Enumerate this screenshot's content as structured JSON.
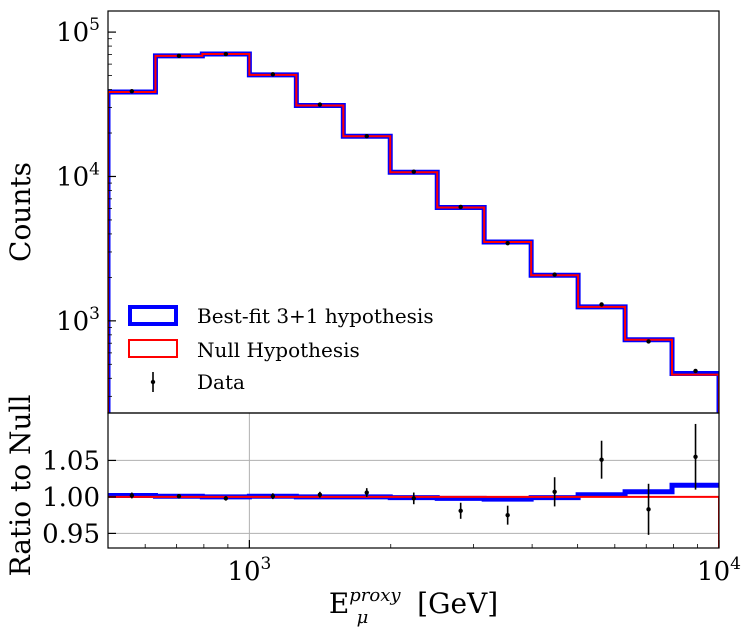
{
  "chart_data": [
    {
      "type": "step",
      "panel": "main",
      "ylabel": "Counts",
      "yscale": "log",
      "ylim": [
        230,
        140000
      ],
      "xscale": "log",
      "xlim": [
        500,
        10000
      ],
      "y_ticks": [
        {
          "value": 1000,
          "base": "10",
          "exp": "3"
        },
        {
          "value": 10000,
          "base": "10",
          "exp": "4"
        },
        {
          "value": 100000,
          "base": "10",
          "exp": "5"
        }
      ],
      "bin_edges": [
        500,
        631,
        794,
        1000,
        1259,
        1585,
        1995,
        2512,
        3162,
        3981,
        5012,
        6310,
        7943,
        10000
      ],
      "series": [
        {
          "name": "Best-fit 3+1 hypothesis",
          "color": "#0000ff",
          "values": [
            38500,
            68500,
            70500,
            50500,
            31000,
            19000,
            10700,
            6100,
            3520,
            2070,
            1250,
            740,
            432
          ]
        },
        {
          "name": "Null Hypothesis",
          "color": "#ff0000",
          "values": [
            38500,
            68500,
            70500,
            50500,
            31000,
            19000,
            10700,
            6100,
            3520,
            2070,
            1250,
            740,
            424
          ]
        }
      ],
      "data_points": {
        "name": "Data",
        "x": [
          562,
          708,
          891,
          1122,
          1413,
          1778,
          2239,
          2818,
          3548,
          4467,
          5623,
          7079,
          8913
        ],
        "y": [
          39000,
          68500,
          70500,
          51000,
          31500,
          19000,
          10800,
          6150,
          3450,
          2090,
          1300,
          720,
          450
        ]
      },
      "legend": {
        "position": "lower-left",
        "entries": [
          "Best-fit 3+1 hypothesis",
          "Null Hypothesis",
          "Data"
        ]
      }
    },
    {
      "type": "step",
      "panel": "ratio",
      "ylabel": "Ratio to Null",
      "xlabel_base": "E",
      "xlabel_sub": "μ",
      "xlabel_sup": "proxy",
      "xlabel_unit": "[GeV]",
      "ylim": [
        0.93,
        1.115
      ],
      "xlim": [
        500,
        10000
      ],
      "y_ticks": [
        {
          "value": 0.95,
          "label": "0.95"
        },
        {
          "value": 1.0,
          "label": "1.00"
        },
        {
          "value": 1.05,
          "label": "1.05"
        }
      ],
      "x_ticks": [
        {
          "value": 1000,
          "base": "10",
          "exp": "3"
        },
        {
          "value": 10000,
          "base": "10",
          "exp": "4"
        }
      ],
      "grid": true,
      "bin_edges": [
        500,
        631,
        794,
        1000,
        1259,
        1585,
        1995,
        2512,
        3162,
        3981,
        5012,
        6310,
        7943,
        10000
      ],
      "series": [
        {
          "name": "Best-fit 3+1 hypothesis",
          "color": "#0000ff",
          "values": [
            1.002,
            1.001,
            1.0,
            1.001,
            1.0,
            1.0,
            0.999,
            0.998,
            0.997,
            0.999,
            1.003,
            1.007,
            1.016
          ]
        },
        {
          "name": "Null Hypothesis",
          "color": "#ff0000",
          "values": [
            1.0,
            1.0,
            1.0,
            1.0,
            1.0,
            1.0,
            1.0,
            1.0,
            1.0,
            1.0,
            1.0,
            1.0,
            1.0
          ]
        }
      ],
      "data_points": {
        "name": "Data",
        "x": [
          562,
          708,
          891,
          1122,
          1413,
          1778,
          2239,
          2818,
          3548,
          4467,
          5623,
          7079,
          8913
        ],
        "y": [
          1.002,
          1.001,
          0.998,
          1.001,
          1.003,
          1.006,
          0.998,
          0.981,
          0.975,
          1.007,
          1.051,
          0.983,
          1.055
        ],
        "yerr": [
          0.004,
          0.003,
          0.003,
          0.004,
          0.004,
          0.006,
          0.008,
          0.011,
          0.013,
          0.02,
          0.026,
          0.035,
          0.045
        ]
      }
    }
  ]
}
